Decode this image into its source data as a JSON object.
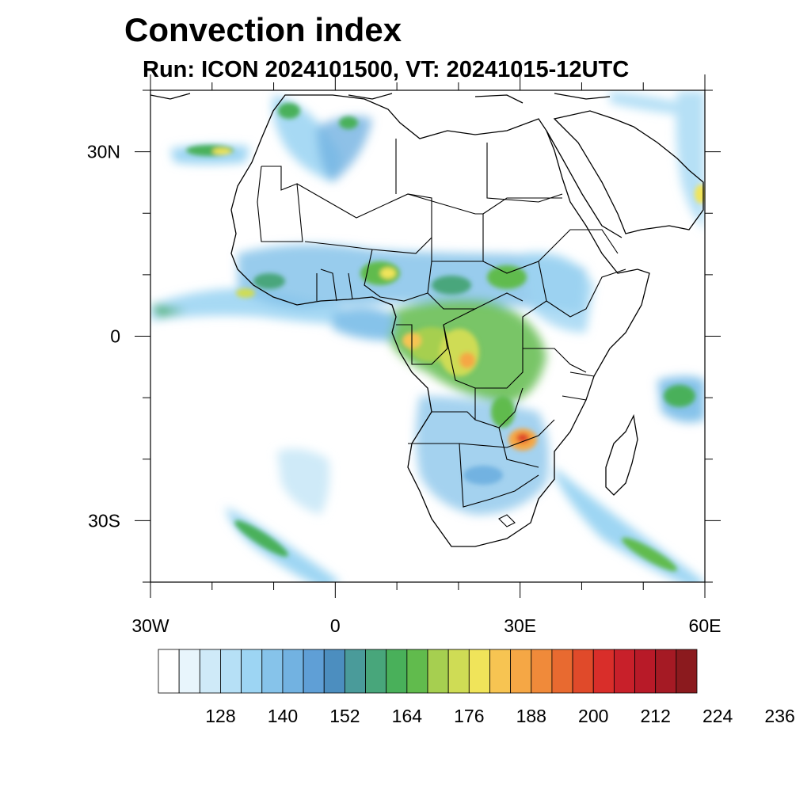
{
  "title": "Convection index",
  "subtitle": "Run: ICON 2024101500,  VT: 20241015-12UTC",
  "map": {
    "lon_range": [
      -30,
      60
    ],
    "lat_range": [
      -40,
      40
    ],
    "x_ticks": [
      {
        "lon": -30,
        "label": "30W"
      },
      {
        "lon": 0,
        "label": "0"
      },
      {
        "lon": 30,
        "label": "30E"
      },
      {
        "lon": 60,
        "label": "60E"
      }
    ],
    "y_ticks": [
      {
        "lat": 30,
        "label": "30N"
      },
      {
        "lat": 0,
        "label": "0"
      },
      {
        "lat": -30,
        "label": "30S"
      }
    ]
  },
  "colorbar": {
    "levels_start": 120,
    "levels_step": 4,
    "colors": [
      "#ffffff",
      "#e8f5fc",
      "#cfeaf8",
      "#b6e0f6",
      "#9dd5f3",
      "#86c3ea",
      "#72b2e1",
      "#5f9fd6",
      "#4c8ebf",
      "#4a9b9a",
      "#48a67b",
      "#49b05a",
      "#61bb4d",
      "#a6cf50",
      "#cfdc55",
      "#f0e45a",
      "#f7c452",
      "#f5a745",
      "#f08a3a",
      "#e86a30",
      "#e04a2a",
      "#d92e2a",
      "#c8202a",
      "#b81a28",
      "#a51a24",
      "#8b1a1e"
    ],
    "tick_labels": [
      "128",
      "140",
      "152",
      "164",
      "176",
      "188",
      "200",
      "212",
      "224",
      "236"
    ]
  }
}
